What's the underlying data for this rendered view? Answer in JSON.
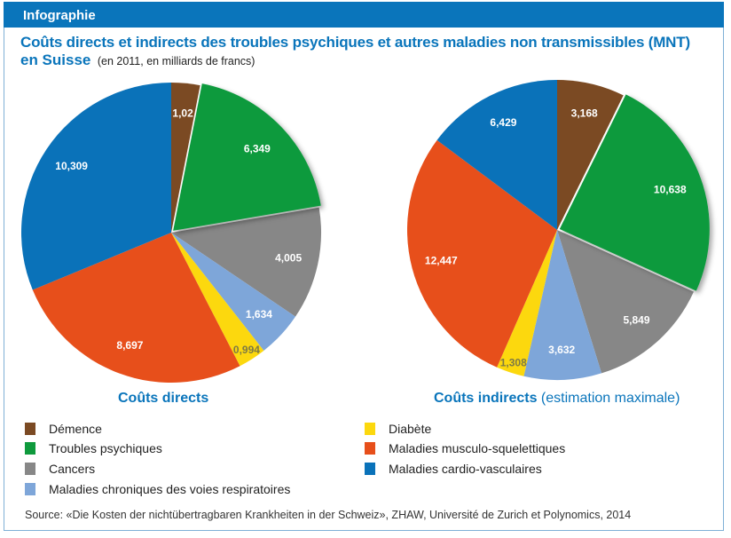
{
  "header": {
    "title": "Infographie"
  },
  "title": {
    "line1": "Coûts directs et indirects des troubles psychiques et autres maladies non transmissibles (MNT)",
    "line2_bold": "en Suisse",
    "line2_sub": "(en 2011, en milliards de francs)"
  },
  "captions": {
    "direct": {
      "bold": "Coûts directs",
      "normal": ""
    },
    "indirect": {
      "bold": "Coûts indirects",
      "normal": "(estimation maximale)"
    }
  },
  "legend": [
    {
      "label": "Démence",
      "color": "#7b4a23"
    },
    {
      "label": "Troubles psychiques",
      "color": "#0f9a3d"
    },
    {
      "label": "Cancers",
      "color": "#878787"
    },
    {
      "label": "Maladies chroniques des voies respiratoires",
      "color": "#7ea6d9"
    },
    {
      "label": "Diabète",
      "color": "#fcd80e"
    },
    {
      "label": "Maladies musculo-squelettiques",
      "color": "#e74f1b"
    },
    {
      "label": "Maladies cardio-vasculaires",
      "color": "#0a72b9"
    }
  ],
  "source": "Source: «Die Kosten der nichtübertragbaren Krankheiten in der Schweiz», ZHAW, Université de Zurich et Polynomics, 2014",
  "chart_data": [
    {
      "type": "pie",
      "title": "Coûts directs",
      "unit": "milliards de francs",
      "categories": [
        "Démence",
        "Troubles psychiques",
        "Cancers",
        "Maladies chroniques des voies respiratoires",
        "Diabète",
        "Maladies musculo-squelettiques",
        "Maladies cardio-vasculaires"
      ],
      "values": [
        1.02,
        6.349,
        4.005,
        1.634,
        0.994,
        8.697,
        10.309
      ],
      "labels": [
        "1,02",
        "6,349",
        "4,005",
        "1,634",
        "0,994",
        "8,697",
        "10,309"
      ],
      "exploded": [
        "Troubles psychiques"
      ],
      "start": "top",
      "direction": "clockwise"
    },
    {
      "type": "pie",
      "title": "Coûts indirects (estimation maximale)",
      "unit": "milliards de francs",
      "categories": [
        "Démence",
        "Troubles psychiques",
        "Cancers",
        "Maladies chroniques des voies respiratoires",
        "Diabète",
        "Maladies musculo-squelettiques",
        "Maladies cardio-vasculaires"
      ],
      "values": [
        3.168,
        10.638,
        5.849,
        3.632,
        1.308,
        12.447,
        6.429
      ],
      "labels": [
        "3,168",
        "10,638",
        "5,849",
        "3,632",
        "1,308",
        "12,447",
        "6,429"
      ],
      "exploded": [
        "Troubles psychiques"
      ],
      "start": "top",
      "direction": "clockwise"
    }
  ]
}
